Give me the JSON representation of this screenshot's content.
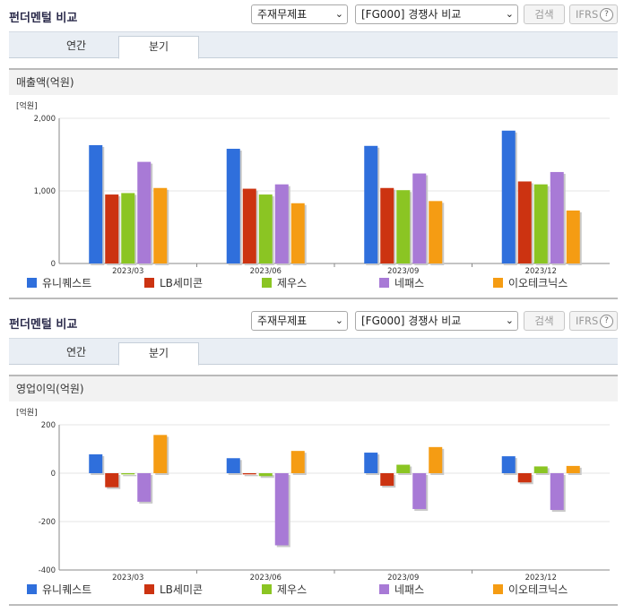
{
  "colors": {
    "series": [
      "#2f6fdc",
      "#cc3311",
      "#8bc523",
      "#a87ad6",
      "#f59c13"
    ],
    "grid": "#e4e4e4",
    "axis": "#8a8a8a"
  },
  "panels": [
    {
      "title": "펀더멘털 비교",
      "select_statement": "주재무제표",
      "select_compare": "[FG000] 경쟁사 비교",
      "search_label": "검색",
      "ifrs_label": "IFRS",
      "help_symbol": "?",
      "tabs": [
        {
          "label": "연간",
          "active": false
        },
        {
          "label": "분기",
          "active": true
        }
      ],
      "section_title": "매출액(억원)",
      "chart_data": {
        "type": "bar",
        "unit_label": "[억원]",
        "categories": [
          "2023/03",
          "2023/06",
          "2023/09",
          "2023/12"
        ],
        "y_ticks": [
          "2,000",
          "1,000",
          "0"
        ],
        "ylim": [
          0,
          2000
        ],
        "grid": true,
        "legend_position": "bottom",
        "series": [
          {
            "name": "유니퀘스트",
            "values": [
              1630,
              1580,
              1620,
              1830
            ]
          },
          {
            "name": "LB세미콘",
            "values": [
              950,
              1030,
              1040,
              1130
            ]
          },
          {
            "name": "제우스",
            "values": [
              970,
              950,
              1010,
              1090
            ]
          },
          {
            "name": "네패스",
            "values": [
              1400,
              1090,
              1240,
              1260
            ]
          },
          {
            "name": "이오테크닉스",
            "values": [
              1040,
              830,
              860,
              730
            ]
          }
        ]
      }
    },
    {
      "title": "펀더멘털 비교",
      "select_statement": "주재무제표",
      "select_compare": "[FG000] 경쟁사 비교",
      "search_label": "검색",
      "ifrs_label": "IFRS",
      "help_symbol": "?",
      "tabs": [
        {
          "label": "연간",
          "active": false
        },
        {
          "label": "분기",
          "active": true
        }
      ],
      "section_title": "영업이익(억원)",
      "chart_data": {
        "type": "bar",
        "unit_label": "[억원]",
        "categories": [
          "2023/03",
          "2023/06",
          "2023/09",
          "2023/12"
        ],
        "y_ticks": [
          "200",
          "0",
          "-200",
          "-400"
        ],
        "ylim": [
          -400,
          200
        ],
        "grid": true,
        "legend_position": "bottom",
        "series": [
          {
            "name": "유니퀘스트",
            "values": [
              78,
              62,
              85,
              70
            ]
          },
          {
            "name": "LB세미콘",
            "values": [
              -58,
              -5,
              -52,
              -38
            ]
          },
          {
            "name": "제우스",
            "values": [
              -5,
              -12,
              35,
              28
            ]
          },
          {
            "name": "네패스",
            "values": [
              -118,
              -298,
              -148,
              -152
            ]
          },
          {
            "name": "이오테크닉스",
            "values": [
              158,
              92,
              108,
              30
            ]
          }
        ]
      }
    }
  ]
}
